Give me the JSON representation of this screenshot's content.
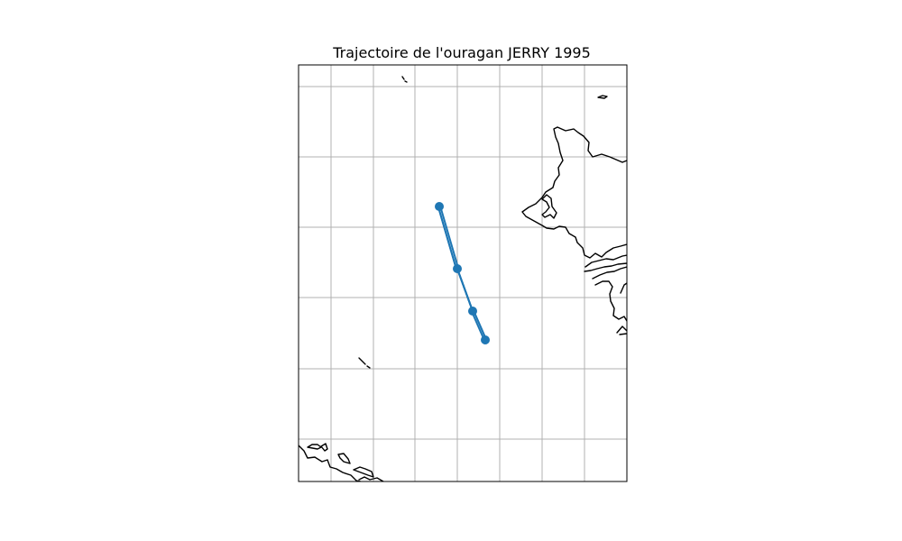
{
  "title": "Trajectoire de l'ouragan JERRY 1995",
  "colors": {
    "track": "#1f77b4",
    "coastline": "#000000",
    "grid": "#b0b0b0",
    "frame": "#000000",
    "background": "#ffffff"
  },
  "chart_data": {
    "type": "map-track",
    "title": "Trajectoire de l'ouragan JERRY 1995",
    "grid": true,
    "series": [
      {
        "name": "",
        "marker": "circle",
        "track_order": [
          0,
          1,
          2,
          3,
          2,
          1,
          0,
          1,
          2,
          3
        ]
      }
    ]
  }
}
